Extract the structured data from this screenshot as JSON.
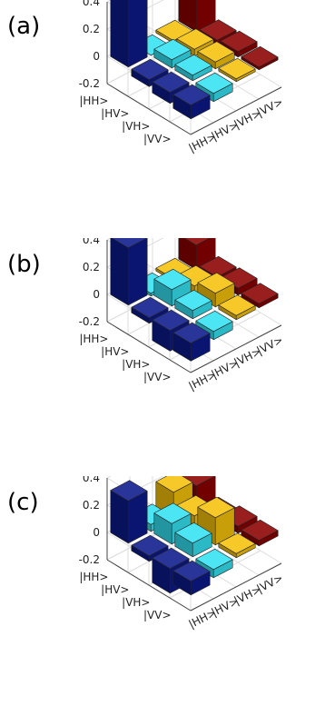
{
  "chart_data": [
    {
      "type": "bar3d",
      "panel_label": "(a)",
      "row_labels": [
        "|HH>",
        "|HV>",
        "|VH>",
        "|VV>"
      ],
      "col_labels": [
        "|HH>",
        "|HV>",
        "|VH>",
        "|VV>"
      ],
      "zticks": [
        "0.4",
        "0.2",
        "0",
        "-0.2"
      ],
      "zlim": [
        -0.2,
        0.4
      ],
      "matrix": [
        [
          0.5,
          0.0,
          0.02,
          0.25
        ],
        [
          -0.05,
          0.06,
          0.05,
          0.03
        ],
        [
          -0.08,
          0.04,
          0.05,
          0.04
        ],
        [
          -0.1,
          -0.06,
          0.02,
          0.02
        ]
      ],
      "colors": [
        "#0c1a8a",
        "#34e2f2",
        "#f5c20b",
        "#8b0000"
      ]
    },
    {
      "type": "bar3d",
      "panel_label": "(b)",
      "row_labels": [
        "|HH>",
        "|HV>",
        "|VH>",
        "|VV>"
      ],
      "col_labels": [
        "|HH>",
        "|HV>",
        "|VH>",
        "|VV>"
      ],
      "zticks": [
        "0.4",
        "0.2",
        "0",
        "-0.2"
      ],
      "zlim": [
        -0.2,
        0.4
      ],
      "matrix": [
        [
          0.42,
          -0.02,
          0.02,
          0.18
        ],
        [
          -0.04,
          0.12,
          0.06,
          0.04
        ],
        [
          -0.15,
          0.06,
          0.1,
          0.05
        ],
        [
          -0.13,
          -0.06,
          0.03,
          0.03
        ]
      ],
      "colors": [
        "#0c1a8a",
        "#34e2f2",
        "#f5c20b",
        "#8b0000"
      ]
    },
    {
      "type": "bar3d",
      "panel_label": "(c)",
      "row_labels": [
        "|HH>",
        "|HV>",
        "|VH>",
        "|VV>"
      ],
      "col_labels": [
        "|HH>",
        "|HV>",
        "|VH>",
        "|VV>"
      ],
      "zticks": [
        "0.4",
        "0.2",
        "0",
        "-0.2"
      ],
      "zlim": [
        -0.2,
        0.4
      ],
      "matrix": [
        [
          0.31,
          0.05,
          0.2,
          0.16
        ],
        [
          -0.04,
          0.15,
          0.12,
          0.02
        ],
        [
          -0.18,
          0.1,
          0.2,
          0.05
        ],
        [
          -0.1,
          -0.06,
          0.03,
          0.04
        ]
      ],
      "colors": [
        "#0c1a8a",
        "#34e2f2",
        "#f5c20b",
        "#8b0000"
      ]
    }
  ]
}
